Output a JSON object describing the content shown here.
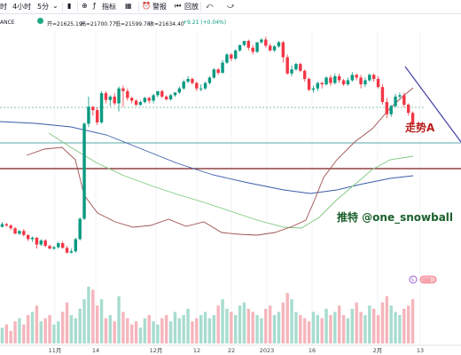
{
  "toolbar": {
    "interval_1h": "时",
    "interval_4h": "4小时",
    "interval_5m": "5分",
    "indicators": "指标",
    "alert": "警报",
    "replay": "回放",
    "undo": "⤺",
    "redo": "⤻"
  },
  "symbol_fragment": "ANCE",
  "ohlc": {
    "open": "开=21625.19",
    "high": "高=21700.77",
    "low": "低=21599.78",
    "close": "收=21634.40",
    "change": "+9.21 (+0.04%)"
  },
  "annotations": {
    "trend_label": "走势A",
    "credit": "推特 @one_snowball"
  },
  "icons": {
    "lightning": "lightning-icon",
    "compare": "compare-icon",
    "candles": "candlestick-icon",
    "indicators": "indicators-icon",
    "layout": "layout-icon",
    "alert": "alarm-icon",
    "replay": "replay-icon",
    "undo": "undo-icon",
    "redo": "redo-icon"
  },
  "colors": {
    "up": "#089981",
    "down": "#f23645",
    "ma_fast": "#a05050",
    "ma_mid": "#7ec87e",
    "ma_slow": "#3a5ba8",
    "level_teal": "#5aa8a8",
    "level_maroon": "#7a1e1e",
    "trend": "#4a4aa8",
    "dotted": "#89c4a8"
  },
  "chart_data": {
    "type": "candlestick",
    "x_ticks": [
      "11月",
      "14",
      "12月",
      "12",
      "22",
      "2023",
      "16",
      "2月",
      "13"
    ],
    "candles": [
      [
        58,
        62,
        57,
        65
      ],
      [
        62,
        60,
        58,
        64
      ],
      [
        60,
        56,
        53,
        62
      ],
      [
        56,
        48,
        47,
        58
      ],
      [
        48,
        52,
        46,
        54
      ],
      [
        52,
        46,
        44,
        55
      ],
      [
        46,
        40,
        37,
        47
      ],
      [
        40,
        42,
        36,
        44
      ],
      [
        42,
        32,
        26,
        43
      ],
      [
        32,
        38,
        30,
        40
      ],
      [
        38,
        30,
        28,
        40
      ],
      [
        30,
        26,
        25,
        32
      ],
      [
        26,
        28,
        24,
        30
      ],
      [
        28,
        34,
        26,
        36
      ],
      [
        34,
        27,
        26,
        37
      ],
      [
        27,
        20,
        19,
        30
      ],
      [
        20,
        22,
        19,
        26
      ],
      [
        22,
        40,
        20,
        42
      ],
      [
        40,
        70,
        38,
        72
      ],
      [
        70,
        210,
        68,
        212
      ],
      [
        210,
        235,
        205,
        250
      ],
      [
        235,
        230,
        222,
        236
      ],
      [
        230,
        212,
        208,
        234
      ],
      [
        212,
        255,
        210,
        258
      ],
      [
        255,
        245,
        240,
        258
      ],
      [
        245,
        250,
        236,
        252
      ],
      [
        250,
        240,
        237,
        255
      ],
      [
        240,
        262,
        228,
        265
      ],
      [
        262,
        258,
        235,
        266
      ],
      [
        258,
        248,
        244,
        262
      ],
      [
        248,
        244,
        240,
        250
      ],
      [
        244,
        238,
        236,
        246
      ],
      [
        238,
        242,
        236,
        244
      ],
      [
        242,
        248,
        240,
        250
      ],
      [
        248,
        244,
        240,
        250
      ],
      [
        244,
        252,
        240,
        254
      ],
      [
        252,
        258,
        249,
        258
      ],
      [
        258,
        250,
        248,
        260
      ],
      [
        250,
        246,
        244,
        252
      ],
      [
        246,
        252,
        244,
        254
      ],
      [
        252,
        256,
        250,
        256
      ],
      [
        256,
        262,
        254,
        265
      ],
      [
        262,
        272,
        260,
        275
      ],
      [
        272,
        276,
        270,
        280
      ],
      [
        276,
        270,
        268,
        278
      ],
      [
        270,
        262,
        258,
        272
      ],
      [
        262,
        262,
        258,
        268
      ],
      [
        262,
        270,
        260,
        272
      ],
      [
        270,
        278,
        268,
        280
      ],
      [
        278,
        290,
        276,
        292
      ],
      [
        290,
        285,
        282,
        292
      ],
      [
        285,
        300,
        284,
        304
      ],
      [
        300,
        312,
        298,
        314
      ],
      [
        312,
        306,
        302,
        314
      ],
      [
        306,
        318,
        304,
        320
      ],
      [
        318,
        326,
        316,
        326
      ],
      [
        326,
        332,
        324,
        332
      ],
      [
        332,
        322,
        318,
        334
      ],
      [
        322,
        316,
        312,
        326
      ],
      [
        316,
        330,
        314,
        330
      ],
      [
        330,
        334,
        328,
        336
      ],
      [
        334,
        325,
        322,
        338
      ],
      [
        325,
        318,
        316,
        328
      ],
      [
        318,
        324,
        316,
        326
      ],
      [
        324,
        330,
        322,
        332
      ],
      [
        330,
        308,
        300,
        332
      ],
      [
        308,
        284,
        282,
        312
      ],
      [
        284,
        290,
        280,
        296
      ],
      [
        290,
        298,
        288,
        300
      ],
      [
        298,
        288,
        286,
        300
      ],
      [
        288,
        276,
        272,
        290
      ],
      [
        276,
        260,
        258,
        278
      ],
      [
        260,
        262,
        256,
        266
      ],
      [
        262,
        270,
        258,
        272
      ],
      [
        270,
        268,
        262,
        272
      ],
      [
        268,
        278,
        266,
        280
      ],
      [
        278,
        270,
        266,
        282
      ],
      [
        270,
        280,
        268,
        284
      ],
      [
        280,
        274,
        270,
        284
      ],
      [
        274,
        268,
        266,
        276
      ],
      [
        268,
        274,
        266,
        278
      ],
      [
        274,
        282,
        272,
        286
      ],
      [
        282,
        278,
        274,
        284
      ],
      [
        278,
        268,
        262,
        282
      ],
      [
        268,
        274,
        264,
        278
      ],
      [
        274,
        282,
        272,
        284
      ],
      [
        282,
        276,
        272,
        284
      ],
      [
        276,
        264,
        262,
        280
      ],
      [
        264,
        242,
        238,
        268
      ],
      [
        242,
        224,
        218,
        248
      ],
      [
        224,
        236,
        220,
        238
      ],
      [
        236,
        250,
        234,
        254
      ],
      [
        250,
        252,
        246,
        256
      ],
      [
        252,
        238,
        234,
        256
      ],
      [
        238,
        226,
        222,
        240
      ],
      [
        226,
        210,
        206,
        228
      ]
    ],
    "volumes": [
      5,
      6,
      4,
      7,
      8,
      6,
      9,
      10,
      12,
      7,
      8,
      9,
      6,
      7,
      10,
      13,
      9,
      8,
      11,
      14,
      18,
      17,
      12,
      14,
      8,
      9,
      7,
      15,
      10,
      8,
      6,
      7,
      5,
      8,
      9,
      7,
      6,
      8,
      9,
      7,
      10,
      8,
      9,
      11,
      7,
      8,
      9,
      10,
      8,
      9,
      12,
      14,
      11,
      10,
      9,
      12,
      13,
      11,
      10,
      9,
      8,
      11,
      12,
      9,
      10,
      13,
      16,
      14,
      10,
      9,
      8,
      7,
      10,
      9,
      8,
      11,
      9,
      10,
      12,
      9,
      8,
      11,
      13,
      10,
      9,
      12,
      11,
      9,
      13,
      15,
      12,
      10,
      9,
      11,
      12,
      14
    ]
  }
}
